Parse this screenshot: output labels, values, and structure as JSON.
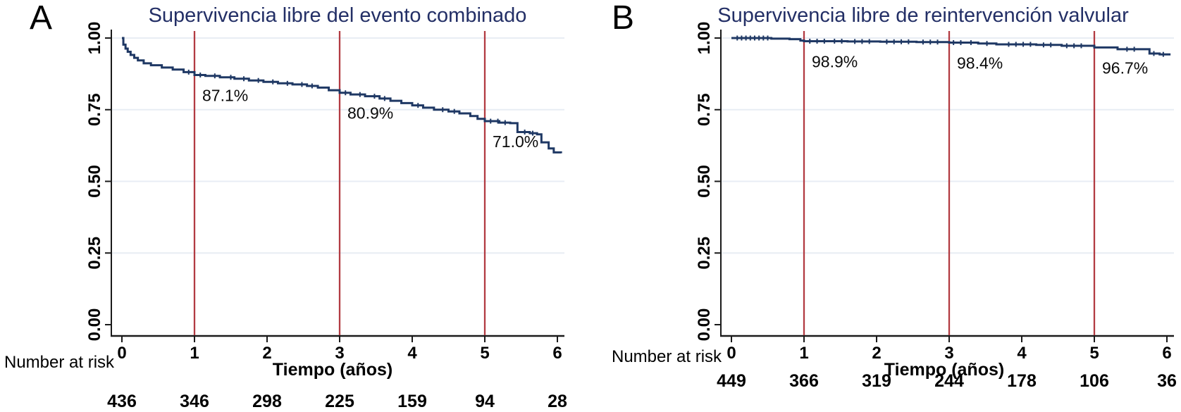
{
  "figure": {
    "background": "#ffffff"
  },
  "chart_data": [
    {
      "panel_label": "A",
      "type": "step",
      "title": "Supervivencia libre del evento combinado",
      "xlabel": "Tiempo (años)",
      "x_ticks": [
        "0",
        "1",
        "2",
        "3",
        "4",
        "5",
        "6"
      ],
      "y_ticks": [
        "1.00",
        "0.75",
        "0.50",
        "0.25",
        "0.00"
      ],
      "xlim": [
        0,
        6
      ],
      "ylim": [
        0,
        1
      ],
      "grid": "horizontal",
      "legend": "none",
      "vline_years": [
        1,
        3,
        5
      ],
      "annotations": [
        {
          "x": 1,
          "value": 0.871,
          "label": "87.1%"
        },
        {
          "x": 3,
          "value": 0.809,
          "label": "80.9%"
        },
        {
          "x": 5,
          "value": 0.71,
          "label": "71.0%"
        }
      ],
      "survival_steps": [
        [
          0.0,
          1.0
        ],
        [
          0.02,
          0.977
        ],
        [
          0.05,
          0.963
        ],
        [
          0.08,
          0.952
        ],
        [
          0.12,
          0.941
        ],
        [
          0.17,
          0.931
        ],
        [
          0.22,
          0.922
        ],
        [
          0.3,
          0.912
        ],
        [
          0.4,
          0.905
        ],
        [
          0.55,
          0.897
        ],
        [
          0.7,
          0.89
        ],
        [
          0.85,
          0.881
        ],
        [
          1.0,
          0.871
        ],
        [
          1.15,
          0.868
        ],
        [
          1.35,
          0.863
        ],
        [
          1.55,
          0.858
        ],
        [
          1.75,
          0.852
        ],
        [
          1.95,
          0.847
        ],
        [
          2.15,
          0.842
        ],
        [
          2.35,
          0.838
        ],
        [
          2.55,
          0.833
        ],
        [
          2.7,
          0.827
        ],
        [
          2.85,
          0.818
        ],
        [
          3.0,
          0.809
        ],
        [
          3.15,
          0.803
        ],
        [
          3.35,
          0.797
        ],
        [
          3.55,
          0.789
        ],
        [
          3.7,
          0.781
        ],
        [
          3.85,
          0.773
        ],
        [
          4.0,
          0.765
        ],
        [
          4.15,
          0.757
        ],
        [
          4.3,
          0.75
        ],
        [
          4.5,
          0.744
        ],
        [
          4.65,
          0.737
        ],
        [
          4.8,
          0.728
        ],
        [
          4.9,
          0.718
        ],
        [
          5.0,
          0.71
        ],
        [
          5.2,
          0.705
        ],
        [
          5.35,
          0.703
        ],
        [
          5.45,
          0.672
        ],
        [
          5.62,
          0.668
        ],
        [
          5.72,
          0.664
        ],
        [
          5.78,
          0.636
        ],
        [
          5.88,
          0.615
        ],
        [
          5.95,
          0.601
        ],
        [
          6.05,
          0.598
        ]
      ],
      "censor_marks": [
        0.92,
        1.08,
        1.28,
        1.5,
        1.68,
        1.88,
        2.08,
        2.28,
        2.48,
        2.62,
        3.08,
        3.28,
        3.48,
        3.62,
        4.08,
        4.42,
        4.58,
        5.08,
        5.18,
        5.28,
        5.55,
        5.66
      ],
      "number_at_risk": {
        "label": "Number at risk",
        "values": [
          "436",
          "346",
          "298",
          "225",
          "159",
          "94",
          "28"
        ]
      },
      "colors": {
        "curve": "#1f3864",
        "vline": "#b23b42",
        "grid": "#e8edf4",
        "title": "#232f66",
        "axis": "#1a1a1a"
      }
    },
    {
      "panel_label": "B",
      "type": "step",
      "title": "Supervivencia libre de reintervención valvular",
      "xlabel": "Tiempo (años)",
      "x_ticks": [
        "0",
        "1",
        "2",
        "3",
        "4",
        "5",
        "6"
      ],
      "y_ticks": [
        "1.00",
        "0.75",
        "0.50",
        "0.25",
        "0.00"
      ],
      "xlim": [
        0,
        6
      ],
      "ylim": [
        0,
        1
      ],
      "grid": "horizontal",
      "legend": "none",
      "vline_years": [
        1,
        3,
        5
      ],
      "annotations": [
        {
          "x": 1,
          "value": 0.989,
          "label": "98.9%"
        },
        {
          "x": 3,
          "value": 0.984,
          "label": "98.4%"
        },
        {
          "x": 5,
          "value": 0.967,
          "label": "96.7%"
        }
      ],
      "survival_steps": [
        [
          0.0,
          1.0
        ],
        [
          0.55,
          0.998
        ],
        [
          0.8,
          0.996
        ],
        [
          0.95,
          0.991
        ],
        [
          1.0,
          0.989
        ],
        [
          1.6,
          0.988
        ],
        [
          2.05,
          0.987
        ],
        [
          2.55,
          0.986
        ],
        [
          3.0,
          0.984
        ],
        [
          3.4,
          0.981
        ],
        [
          3.65,
          0.978
        ],
        [
          4.2,
          0.976
        ],
        [
          4.55,
          0.973
        ],
        [
          5.0,
          0.967
        ],
        [
          5.32,
          0.961
        ],
        [
          5.76,
          0.946
        ],
        [
          5.9,
          0.943
        ],
        [
          6.05,
          0.943
        ]
      ],
      "censor_marks": [
        0.08,
        0.14,
        0.2,
        0.26,
        0.32,
        0.38,
        0.44,
        0.5,
        1.08,
        1.18,
        1.28,
        1.42,
        1.52,
        1.7,
        1.8,
        1.9,
        2.14,
        2.24,
        2.34,
        2.44,
        2.64,
        2.74,
        2.84,
        3.06,
        3.16,
        3.3,
        3.52,
        3.82,
        3.92,
        4.02,
        4.12,
        4.3,
        4.4,
        4.62,
        4.72,
        4.82,
        5.45,
        5.55,
        5.82,
        5.95
      ],
      "number_at_risk": {
        "label": "Number at risk",
        "values": [
          "449",
          "366",
          "319",
          "244",
          "178",
          "106",
          "36"
        ]
      },
      "colors": {
        "curve": "#1f3864",
        "vline": "#b23b42",
        "grid": "#e8edf4",
        "title": "#232f66",
        "axis": "#1a1a1a"
      }
    }
  ]
}
